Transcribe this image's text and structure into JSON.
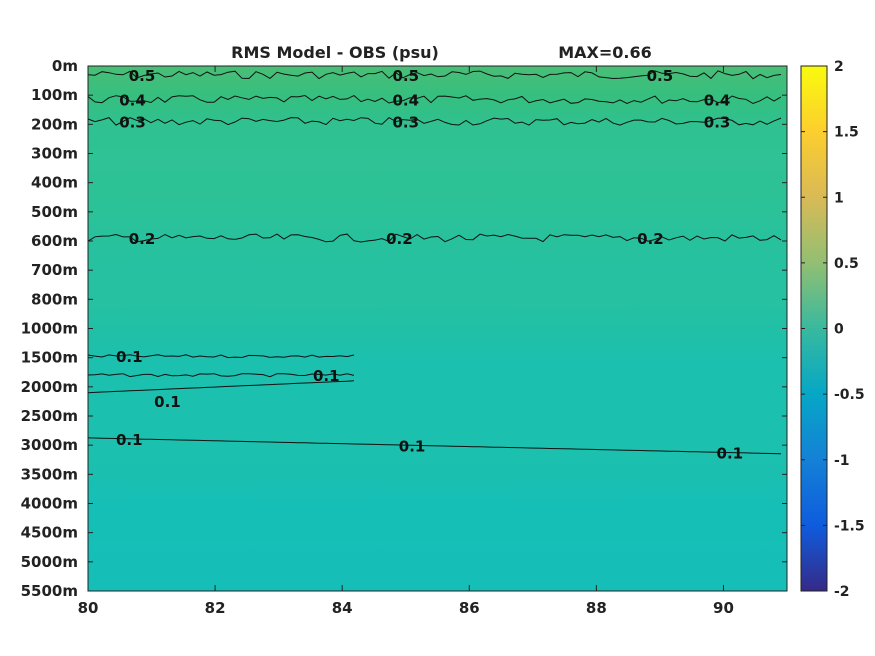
{
  "chart_data": {
    "type": "heatmap",
    "title": "RMS Model - OBS (psu)",
    "max_label": "MAX=0.66",
    "xlabel": "",
    "ylabel": "",
    "xlim": [
      80,
      91
    ],
    "x_ticks": [
      80,
      82,
      84,
      86,
      88,
      90
    ],
    "x_tick_labels": [
      "80",
      "82",
      "84",
      "86",
      "88",
      "90"
    ],
    "y_tick_labels": [
      "0m",
      "100m",
      "200m",
      "300m",
      "400m",
      "500m",
      "600m",
      "700m",
      "800m",
      "1000m",
      "1500m",
      "2000m",
      "2500m",
      "3000m",
      "3500m",
      "4000m",
      "4500m",
      "5000m",
      "5500m"
    ],
    "depth_levels_m": [
      0,
      100,
      200,
      300,
      400,
      500,
      600,
      700,
      800,
      1000,
      1500,
      2000,
      2500,
      3000,
      3500,
      4000,
      4500,
      5000,
      5500
    ],
    "field_by_depth_level": [
      0.6,
      0.45,
      0.3,
      0.27,
      0.26,
      0.24,
      0.2,
      0.19,
      0.18,
      0.15,
      0.1,
      0.1,
      0.1,
      0.1,
      0.09,
      0.05,
      0.05,
      0.04,
      0.04
    ],
    "colorbar": {
      "limits": [
        -2,
        2
      ],
      "ticks": [
        2,
        1.5,
        1,
        0.5,
        0,
        -0.5,
        -1,
        -1.5,
        -2
      ],
      "tick_labels": [
        "2",
        "1.5",
        "1",
        "0.5",
        "0",
        "-0.5",
        "-1",
        "-1.5",
        "-2"
      ],
      "colormap": "parula"
    },
    "contours": [
      {
        "level": 0.5,
        "label": "0.5",
        "depth_level": 0.3,
        "labels_at_lon": [
          80.85,
          85.0,
          89.0
        ]
      },
      {
        "level": 0.4,
        "label": "0.4",
        "depth_level": 1.15,
        "labels_at_lon": [
          80.7,
          85.0,
          89.9
        ]
      },
      {
        "level": 0.3,
        "label": "0.3",
        "depth_level": 1.9,
        "labels_at_lon": [
          80.7,
          85.0,
          89.9
        ]
      },
      {
        "level": 0.2,
        "label": "0.2",
        "depth_level": 5.9,
        "labels_at_lon": [
          80.85,
          84.9,
          88.85
        ]
      },
      {
        "level": 0.1,
        "label": "0.1",
        "depth_level": 9.95,
        "labels_at_lon": [
          80.65
        ]
      },
      {
        "level": 0.1,
        "label": "0.1",
        "depth_level": 10.6,
        "labels_at_lon": [
          83.75
        ]
      },
      {
        "level": 0.1,
        "label": "0.1",
        "depth_level": 11.2,
        "labels_at_lon": [
          81.25
        ]
      },
      {
        "level": 0.1,
        "label": "0.1",
        "depth_level": 12.75,
        "labels_at_lon": [
          80.65,
          85.1,
          90.1
        ]
      }
    ]
  }
}
